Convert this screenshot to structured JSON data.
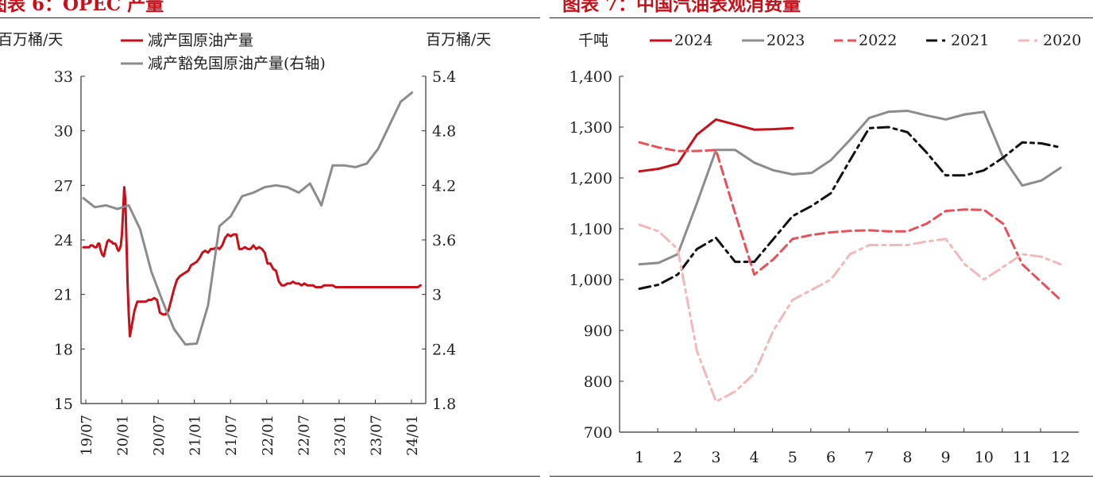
{
  "chart_data": [
    {
      "type": "line",
      "title": "图表 6：OPEC 产量",
      "ylabel_left": "百万桶/天",
      "ylabel_right": "百万桶/天",
      "y_ticks": [
        "33",
        "30",
        "27",
        "24",
        "21",
        "18",
        "15"
      ],
      "y2_ticks": [
        "5.4",
        "4.8",
        "4.2",
        "3.6",
        "3",
        "2.4",
        "1.8"
      ],
      "ylim": [
        15,
        33
      ],
      "y2lim": [
        1.8,
        5.4
      ],
      "x_tick_labels": [
        "19/07",
        "20/01",
        "20/07",
        "21/01",
        "21/07",
        "22/01",
        "22/07",
        "23/01",
        "23/07",
        "24/01"
      ],
      "legend_placement": "top",
      "series": [
        {
          "name": "减产国原油产量",
          "axis": "left",
          "color": "#c8101a",
          "x": [
            0,
            0.5,
            1,
            1.3,
            1.6,
            2,
            2.3,
            2.6,
            2.8,
            3,
            3.3,
            3.6,
            3.9,
            4.2,
            4.5,
            4.8,
            5,
            5.2,
            5.4,
            5.6,
            5.8,
            6,
            6.2,
            6.4,
            6.6,
            6.8,
            7,
            7.2,
            7.4,
            7.6,
            7.8,
            8,
            8.2,
            8.5,
            9,
            9.5,
            10,
            10.5,
            11,
            11.5,
            12,
            12.5,
            13,
            13.5,
            14,
            14.5,
            15,
            15.5,
            16,
            16.5,
            17,
            17.5,
            18,
            18.5,
            19,
            19.5,
            20,
            20.5,
            21,
            21.5,
            22,
            22.5,
            23,
            23.5,
            24,
            24.5,
            25,
            25.5,
            26,
            26.5,
            27,
            27.5,
            28,
            28.5,
            29,
            29.5,
            30,
            30.5,
            31,
            31.5,
            32,
            32.5,
            33,
            33.5,
            34,
            34.5,
            35,
            35.5,
            36,
            36.5,
            37,
            37.5,
            38,
            38.5,
            39,
            39.5,
            40,
            40.5,
            41,
            41.5,
            42,
            42.5,
            43,
            43.5,
            44,
            44.5,
            45,
            45.5,
            46,
            46.5,
            47,
            47.5,
            48,
            48.5,
            49,
            49.5,
            50,
            50.5,
            51,
            51.5,
            52,
            52.5,
            53,
            53.5,
            54,
            54.5,
            55,
            55.5,
            56,
            56.5,
            57,
            57.5,
            58,
            58.5,
            59,
            59.5
          ],
          "y": [
            23.6,
            23.6,
            23.6,
            23.7,
            23.7,
            23.6,
            23.6,
            23.8,
            23.8,
            23.5,
            23.2,
            23.1,
            23.5,
            23.9,
            24.0,
            23.9,
            23.9,
            23.8,
            23.8,
            23.8,
            23.7,
            23.5,
            23.4,
            23.5,
            23.7,
            24.3,
            25.5,
            26.9,
            26.2,
            24.0,
            21.6,
            19.9,
            18.7,
            19.2,
            20.1,
            20.6,
            20.6,
            20.6,
            20.6,
            20.7,
            20.7,
            20.8,
            20.7,
            20.0,
            19.9,
            19.9,
            20.1,
            20.7,
            21.3,
            21.8,
            22.0,
            22.1,
            22.2,
            22.3,
            22.6,
            22.7,
            22.8,
            23.0,
            23.3,
            23.4,
            23.3,
            23.5,
            23.5,
            23.6,
            23.5,
            23.7,
            24.1,
            24.3,
            24.2,
            24.3,
            24.3,
            23.5,
            23.5,
            23.6,
            23.5,
            23.5,
            23.7,
            23.5,
            23.6,
            23.5,
            23.3,
            22.7,
            22.7,
            22.4,
            22.3,
            21.7,
            21.5,
            21.5,
            21.6,
            21.6,
            21.7,
            21.6,
            21.6,
            21.5,
            21.6,
            21.5,
            21.5,
            21.5,
            21.4,
            21.4,
            21.4,
            21.5,
            21.5,
            21.5,
            21.5,
            21.4,
            21.4,
            21.4,
            21.4,
            21.4,
            21.4,
            21.4,
            21.4,
            21.4,
            21.4,
            21.4,
            21.4,
            21.4,
            21.4,
            21.4,
            21.4,
            21.4,
            21.4,
            21.4,
            21.4,
            21.4,
            21.4,
            21.4,
            21.4,
            21.4,
            21.4,
            21.4,
            21.4,
            21.4,
            21.4,
            21.5
          ]
        },
        {
          "name": "减产豁免国原油产量(右轴)",
          "axis": "right",
          "color": "#8c8c8c",
          "x": [
            0,
            2,
            4,
            6,
            8,
            10,
            12,
            14,
            16,
            18,
            20,
            22,
            24,
            26,
            28,
            30,
            32,
            34,
            36,
            38,
            40,
            42,
            44,
            46,
            48,
            50,
            52,
            54,
            56,
            58
          ],
          "y": [
            4.06,
            3.96,
            3.98,
            3.94,
            3.98,
            3.72,
            3.25,
            2.92,
            2.62,
            2.45,
            2.46,
            2.88,
            3.75,
            3.86,
            4.08,
            4.12,
            4.18,
            4.2,
            4.18,
            4.12,
            4.22,
            3.98,
            4.42,
            4.42,
            4.4,
            4.44,
            4.6,
            4.86,
            5.12,
            5.22
          ]
        }
      ]
    },
    {
      "type": "line",
      "title": "图表 7：中国汽油表观消费量",
      "ylabel": "千吨",
      "xlabel": "",
      "categories": [
        "1",
        "2",
        "3",
        "4",
        "5",
        "6",
        "7",
        "8",
        "9",
        "10",
        "11",
        "12"
      ],
      "y_ticks": [
        "1,400",
        "1,300",
        "1,200",
        "1,100",
        "1,000",
        "900",
        "800",
        "700"
      ],
      "ylim": [
        700,
        1400
      ],
      "legend_placement": "top",
      "series": [
        {
          "name": "2024",
          "color": "#c8101a",
          "style": "solid",
          "x": [
            1,
            1.5,
            2,
            2.5,
            3,
            3.5,
            4,
            4.5,
            5
          ],
          "y": [
            1213,
            1218,
            1228,
            1285,
            1315,
            1305,
            1295,
            1296,
            1298
          ]
        },
        {
          "name": "2023",
          "color": "#8c8c8c",
          "style": "solid",
          "x": [
            1,
            1.5,
            2,
            2.5,
            3,
            3.5,
            4,
            4.5,
            5,
            5.5,
            6,
            6.5,
            7,
            7.5,
            8,
            8.5,
            9,
            9.5,
            10,
            10.5,
            11,
            11.5,
            12
          ],
          "y": [
            1030,
            1033,
            1050,
            1150,
            1255,
            1255,
            1230,
            1215,
            1207,
            1210,
            1235,
            1275,
            1318,
            1330,
            1332,
            1323,
            1315,
            1325,
            1330,
            1240,
            1185,
            1195,
            1220
          ]
        },
        {
          "name": "2022",
          "color": "#e8505a",
          "style": "dashed",
          "x": [
            1,
            1.5,
            2,
            2.5,
            3,
            3.5,
            4,
            4.5,
            5,
            5.5,
            6,
            6.5,
            7,
            7.5,
            8,
            8.5,
            9,
            9.5,
            10,
            10.5,
            11,
            11.5,
            12
          ],
          "y": [
            1270,
            1260,
            1253,
            1253,
            1255,
            1130,
            1010,
            1040,
            1080,
            1088,
            1093,
            1096,
            1097,
            1095,
            1095,
            1110,
            1135,
            1138,
            1137,
            1110,
            1030,
            995,
            960
          ]
        },
        {
          "name": "2021",
          "color": "#111111",
          "style": "dash-dot",
          "x": [
            1,
            1.5,
            2,
            2.5,
            3,
            3.5,
            4,
            4.5,
            5,
            5.5,
            6,
            6.5,
            7,
            7.5,
            8,
            8.5,
            9,
            9.5,
            10,
            10.5,
            11,
            11.5,
            12
          ],
          "y": [
            982,
            990,
            1010,
            1060,
            1082,
            1035,
            1035,
            1080,
            1125,
            1145,
            1170,
            1235,
            1298,
            1300,
            1290,
            1250,
            1205,
            1205,
            1215,
            1240,
            1270,
            1268,
            1260
          ]
        },
        {
          "name": "2020",
          "color": "#f2b8bc",
          "style": "dash-dot",
          "x": [
            1,
            1.5,
            2,
            2.5,
            3,
            3.5,
            4,
            4.5,
            5,
            5.5,
            6,
            6.5,
            7,
            7.5,
            8,
            8.5,
            9,
            9.5,
            10,
            10.5,
            11,
            11.5,
            12
          ],
          "y": [
            1108,
            1095,
            1060,
            860,
            760,
            780,
            815,
            900,
            960,
            980,
            1000,
            1050,
            1068,
            1068,
            1068,
            1075,
            1080,
            1030,
            1000,
            1025,
            1050,
            1045,
            1030
          ]
        }
      ]
    }
  ]
}
